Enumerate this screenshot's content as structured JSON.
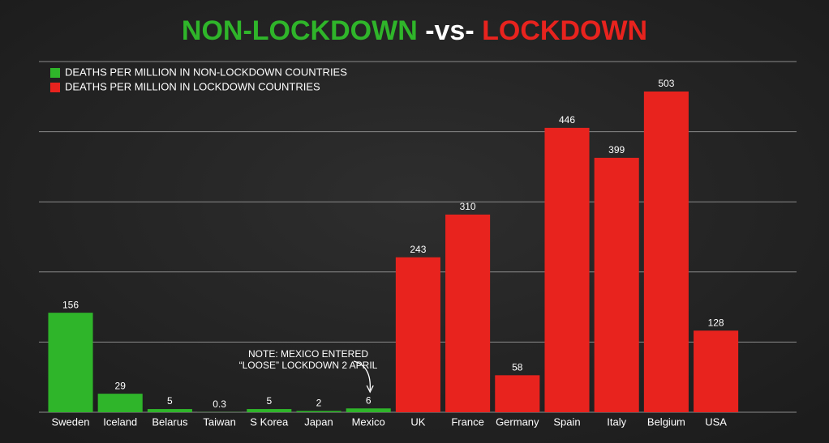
{
  "chart_data": {
    "type": "bar",
    "title_parts": [
      {
        "text": "NON-LOCKDOWN",
        "color": "#2fb52a"
      },
      {
        "text": "-vs-",
        "color": "#ffffff"
      },
      {
        "text": "LOCKDOWN",
        "color": "#e8231e"
      }
    ],
    "categories": [
      "Sweden",
      "Iceland",
      "Belarus",
      "Taiwan",
      "S Korea",
      "Japan",
      "Mexico",
      "UK",
      "France",
      "Germany",
      "Spain",
      "Italy",
      "Belgium",
      "USA"
    ],
    "series": [
      {
        "name": "DEATHS PER MILLION IN NON-LOCKDOWN COUNTRIES",
        "color": "#2fb52a",
        "values": [
          156,
          29,
          5,
          0.3,
          5,
          2,
          6,
          null,
          null,
          null,
          null,
          null,
          null,
          null
        ]
      },
      {
        "name": "DEATHS PER MILLION IN LOCKDOWN COUNTRIES",
        "color": "#e8231e",
        "values": [
          null,
          null,
          null,
          null,
          null,
          null,
          null,
          243,
          310,
          58,
          446,
          399,
          503,
          128
        ]
      }
    ],
    "annotation": {
      "lines": [
        "NOTE: MEXICO ENTERED",
        "“LOOSE” LOCKDOWN 2 APRIL"
      ],
      "category": 6
    },
    "ylim": [
      0,
      550
    ],
    "gridlines": [
      0,
      110,
      220,
      330,
      440,
      550
    ],
    "grid": true,
    "legend": "top-left"
  }
}
